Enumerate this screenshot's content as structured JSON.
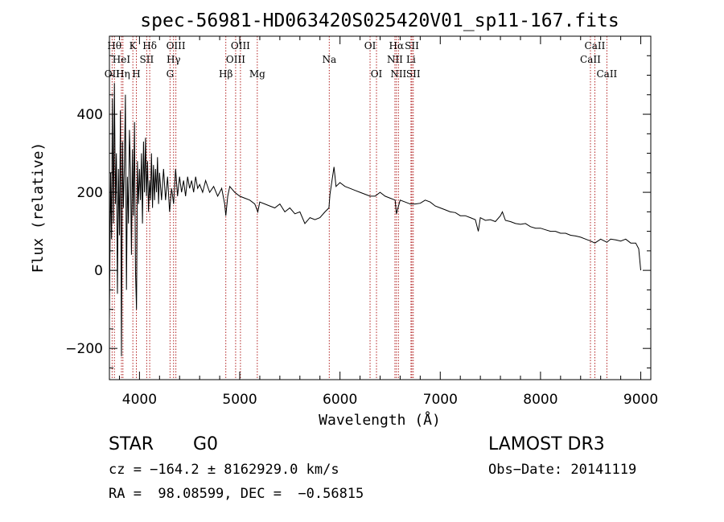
{
  "chart_data": {
    "type": "line",
    "title": "spec-56981-HD063420S025420V01_sp11-167.fits",
    "xlabel": "Wavelength (Å)",
    "ylabel": "Flux (relative)",
    "xlim": [
      3700,
      9100
    ],
    "ylim": [
      -280,
      600
    ],
    "x_ticks": [
      4000,
      5000,
      6000,
      7000,
      8000,
      9000
    ],
    "y_ticks": [
      -200,
      0,
      200,
      400
    ],
    "line_color": "#000000",
    "marker_color": "#b22222",
    "spectrum": [
      [
        3700,
        -130
      ],
      [
        3712,
        250
      ],
      [
        3722,
        80
      ],
      [
        3730,
        440
      ],
      [
        3740,
        120
      ],
      [
        3750,
        480
      ],
      [
        3760,
        170
      ],
      [
        3770,
        300
      ],
      [
        3780,
        -60
      ],
      [
        3790,
        260
      ],
      [
        3800,
        90
      ],
      [
        3810,
        410
      ],
      [
        3820,
        -220
      ],
      [
        3830,
        330
      ],
      [
        3840,
        160
      ],
      [
        3850,
        270
      ],
      [
        3860,
        450
      ],
      [
        3870,
        -50
      ],
      [
        3880,
        240
      ],
      [
        3890,
        120
      ],
      [
        3900,
        360
      ],
      [
        3910,
        260
      ],
      [
        3920,
        40
      ],
      [
        3930,
        310
      ],
      [
        3940,
        140
      ],
      [
        3950,
        380
      ],
      [
        3960,
        0
      ],
      [
        3970,
        -100
      ],
      [
        3980,
        280
      ],
      [
        3990,
        170
      ],
      [
        4000,
        260
      ],
      [
        4010,
        180
      ],
      [
        4020,
        300
      ],
      [
        4030,
        120
      ],
      [
        4040,
        330
      ],
      [
        4050,
        200
      ],
      [
        4060,
        340
      ],
      [
        4070,
        190
      ],
      [
        4080,
        280
      ],
      [
        4090,
        150
      ],
      [
        4100,
        230
      ],
      [
        4110,
        180
      ],
      [
        4120,
        300
      ],
      [
        4130,
        160
      ],
      [
        4140,
        270
      ],
      [
        4150,
        180
      ],
      [
        4160,
        260
      ],
      [
        4170,
        200
      ],
      [
        4180,
        290
      ],
      [
        4190,
        170
      ],
      [
        4200,
        250
      ],
      [
        4220,
        180
      ],
      [
        4240,
        260
      ],
      [
        4260,
        180
      ],
      [
        4280,
        240
      ],
      [
        4300,
        150
      ],
      [
        4320,
        210
      ],
      [
        4340,
        170
      ],
      [
        4360,
        260
      ],
      [
        4380,
        190
      ],
      [
        4400,
        240
      ],
      [
        4420,
        200
      ],
      [
        4440,
        230
      ],
      [
        4460,
        190
      ],
      [
        4480,
        240
      ],
      [
        4500,
        210
      ],
      [
        4520,
        230
      ],
      [
        4540,
        200
      ],
      [
        4560,
        240
      ],
      [
        4580,
        210
      ],
      [
        4600,
        220
      ],
      [
        4630,
        200
      ],
      [
        4660,
        230
      ],
      [
        4700,
        200
      ],
      [
        4740,
        215
      ],
      [
        4780,
        190
      ],
      [
        4820,
        210
      ],
      [
        4850,
        170
      ],
      [
        4861,
        140
      ],
      [
        4880,
        190
      ],
      [
        4900,
        215
      ],
      [
        4950,
        200
      ],
      [
        5000,
        190
      ],
      [
        5050,
        185
      ],
      [
        5100,
        180
      ],
      [
        5150,
        170
      ],
      [
        5180,
        150
      ],
      [
        5200,
        175
      ],
      [
        5250,
        170
      ],
      [
        5300,
        165
      ],
      [
        5350,
        160
      ],
      [
        5400,
        170
      ],
      [
        5450,
        150
      ],
      [
        5500,
        160
      ],
      [
        5550,
        145
      ],
      [
        5600,
        150
      ],
      [
        5650,
        120
      ],
      [
        5700,
        135
      ],
      [
        5750,
        130
      ],
      [
        5800,
        135
      ],
      [
        5850,
        150
      ],
      [
        5890,
        160
      ],
      [
        5900,
        195
      ],
      [
        5920,
        230
      ],
      [
        5940,
        265
      ],
      [
        5960,
        215
      ],
      [
        6000,
        225
      ],
      [
        6050,
        215
      ],
      [
        6100,
        210
      ],
      [
        6150,
        205
      ],
      [
        6200,
        200
      ],
      [
        6250,
        195
      ],
      [
        6300,
        190
      ],
      [
        6350,
        190
      ],
      [
        6400,
        200
      ],
      [
        6450,
        190
      ],
      [
        6500,
        185
      ],
      [
        6550,
        180
      ],
      [
        6563,
        145
      ],
      [
        6600,
        180
      ],
      [
        6650,
        175
      ],
      [
        6700,
        170
      ],
      [
        6750,
        170
      ],
      [
        6800,
        172
      ],
      [
        6850,
        180
      ],
      [
        6900,
        175
      ],
      [
        6950,
        165
      ],
      [
        7000,
        160
      ],
      [
        7050,
        155
      ],
      [
        7100,
        150
      ],
      [
        7150,
        148
      ],
      [
        7200,
        140
      ],
      [
        7250,
        140
      ],
      [
        7300,
        135
      ],
      [
        7350,
        130
      ],
      [
        7380,
        100
      ],
      [
        7400,
        135
      ],
      [
        7450,
        128
      ],
      [
        7500,
        130
      ],
      [
        7550,
        125
      ],
      [
        7600,
        140
      ],
      [
        7620,
        150
      ],
      [
        7650,
        128
      ],
      [
        7700,
        125
      ],
      [
        7750,
        120
      ],
      [
        7800,
        118
      ],
      [
        7850,
        120
      ],
      [
        7900,
        112
      ],
      [
        7950,
        108
      ],
      [
        8000,
        108
      ],
      [
        8050,
        104
      ],
      [
        8100,
        100
      ],
      [
        8150,
        100
      ],
      [
        8200,
        95
      ],
      [
        8250,
        95
      ],
      [
        8300,
        90
      ],
      [
        8350,
        88
      ],
      [
        8400,
        85
      ],
      [
        8450,
        80
      ],
      [
        8500,
        75
      ],
      [
        8542,
        70
      ],
      [
        8600,
        80
      ],
      [
        8662,
        72
      ],
      [
        8700,
        80
      ],
      [
        8750,
        78
      ],
      [
        8800,
        75
      ],
      [
        8850,
        80
      ],
      [
        8900,
        70
      ],
      [
        8950,
        70
      ],
      [
        8980,
        55
      ],
      [
        9000,
        0
      ]
    ],
    "lines": [
      {
        "name": "OII",
        "wl": 3727,
        "row": 3
      },
      {
        "name": "Hθ",
        "wl": 3750,
        "row": 1
      },
      {
        "name": "HeI",
        "wl": 3820,
        "row": 2
      },
      {
        "name": "Hη",
        "wl": 3835,
        "row": 3
      },
      {
        "name": "K",
        "wl": 3934,
        "row": 1
      },
      {
        "name": "SII",
        "wl": 4072,
        "row": 2
      },
      {
        "name": "H",
        "wl": 3969,
        "row": 3
      },
      {
        "name": "Hδ",
        "wl": 4102,
        "row": 1
      },
      {
        "name": "OIII",
        "wl": 4363,
        "row": 1
      },
      {
        "name": "Hγ",
        "wl": 4340,
        "row": 2
      },
      {
        "name": "G",
        "wl": 4305,
        "row": 3
      },
      {
        "name": "Hβ",
        "wl": 4861,
        "row": 3
      },
      {
        "name": "OIII",
        "wl": 5007,
        "row": 1
      },
      {
        "name": "OIII",
        "wl": 4959,
        "row": 2
      },
      {
        "name": "Mg",
        "wl": 5175,
        "row": 3
      },
      {
        "name": "Na",
        "wl": 5893,
        "row": 2
      },
      {
        "name": "OI",
        "wl": 6300,
        "row": 1
      },
      {
        "name": "OI",
        "wl": 6364,
        "row": 3
      },
      {
        "name": "Hα",
        "wl": 6563,
        "row": 1
      },
      {
        "name": "NII",
        "wl": 6548,
        "row": 2
      },
      {
        "name": "NII",
        "wl": 6583,
        "row": 3
      },
      {
        "name": "SII",
        "wl": 6717,
        "row": 1
      },
      {
        "name": "Li",
        "wl": 6708,
        "row": 2
      },
      {
        "name": "SII",
        "wl": 6731,
        "row": 3
      },
      {
        "name": "CaII",
        "wl": 8542,
        "row": 1
      },
      {
        "name": "CaII",
        "wl": 8498,
        "row": 2
      },
      {
        "name": "CaII",
        "wl": 8662,
        "row": 3
      }
    ]
  },
  "info": {
    "object_class": "STAR",
    "subclass": "G0",
    "survey": "LAMOST DR3",
    "cz": "cz = −164.2 ± 8162929.0 km/s",
    "obs_date": "Obs−Date: 20141119",
    "coords": "RA =  98.08599, DEC =  −0.56815"
  }
}
